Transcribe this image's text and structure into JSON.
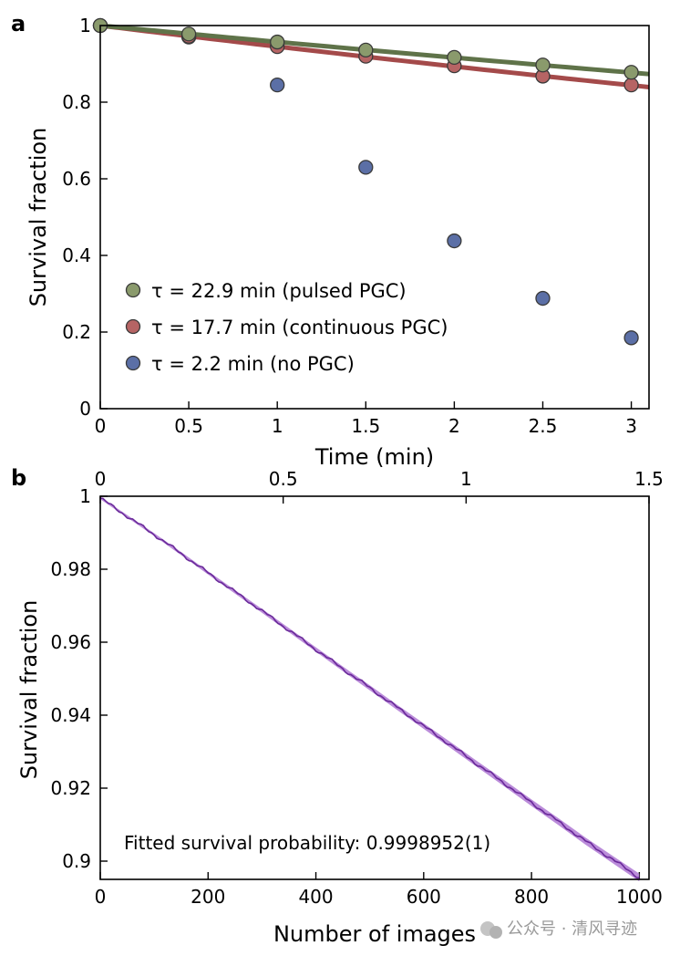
{
  "chart_data": [
    {
      "panel": "a",
      "type": "scatter",
      "xlabel": "Time (min)",
      "ylabel": "Survival fraction",
      "xlim": [
        0,
        3.1
      ],
      "ylim": [
        0,
        1
      ],
      "xticks": [
        0,
        0.5,
        1,
        1.5,
        2,
        2.5,
        3
      ],
      "xtick_labels": [
        "0",
        "0.5",
        "1",
        "1.5",
        "2",
        "2.5",
        "3"
      ],
      "yticks": [
        0,
        0.2,
        0.4,
        0.6,
        0.8,
        1
      ],
      "ytick_labels": [
        "0",
        "0.2",
        "0.4",
        "0.6",
        "0.8",
        "1"
      ],
      "x": [
        0,
        0.5,
        1,
        1.5,
        2,
        2.5,
        3
      ],
      "legend_position": "center-left",
      "series": [
        {
          "name": "τ = 22.9 min (pulsed PGC)",
          "color": "#8a9a6c",
          "fit_color": "#5f7349",
          "tau": 22.9,
          "values": [
            1.0,
            0.978,
            0.957,
            0.936,
            0.917,
            0.897,
            0.878
          ]
        },
        {
          "name": "τ = 17.7 min (continuous PGC)",
          "color": "#b66464",
          "fit_color": "#a44a4a",
          "tau": 17.7,
          "values": [
            1.0,
            0.972,
            0.945,
            0.92,
            0.895,
            0.868,
            0.845
          ]
        },
        {
          "name": "τ = 2.2 min (no PGC)",
          "color": "#5b6fa6",
          "fit_color": "",
          "tau": 2.2,
          "values": [
            1.0,
            0.97,
            0.845,
            0.63,
            0.438,
            0.288,
            0.185
          ]
        }
      ]
    },
    {
      "panel": "b",
      "type": "line",
      "xlabel": "Number of images",
      "ylabel": "Survival fraction",
      "xlim": [
        0,
        1000
      ],
      "ylim": [
        0.895,
        1
      ],
      "xticks": [
        0,
        200,
        400,
        600,
        800,
        1000
      ],
      "xtick_labels": [
        "0",
        "200",
        "400",
        "600",
        "800",
        "1000"
      ],
      "yticks": [
        0.9,
        0.92,
        0.94,
        0.96,
        0.98,
        1
      ],
      "ytick_labels": [
        "0.9",
        "0.92",
        "0.94",
        "0.96",
        "0.98",
        "1"
      ],
      "top_axis_min": [
        0,
        1.5
      ],
      "top_xticks": [
        0,
        0.5,
        1,
        1.5
      ],
      "top_xtick_labels": [
        "0",
        "0.5",
        "1",
        "1.5"
      ],
      "series": [
        {
          "name": "Survival fraction",
          "color": "#6a2a9a",
          "band_color": "#b47fd6",
          "x": [
            0,
            50,
            100,
            150,
            200,
            250,
            300,
            350,
            400,
            450,
            500,
            550,
            600,
            650,
            700,
            750,
            800,
            850,
            900,
            950,
            1000
          ],
          "values": [
            0.9995,
            0.9945,
            0.9895,
            0.9843,
            0.979,
            0.9738,
            0.9686,
            0.9633,
            0.958,
            0.9527,
            0.9475,
            0.9422,
            0.937,
            0.9318,
            0.9265,
            0.9213,
            0.916,
            0.9108,
            0.9055,
            0.9005,
            0.8955
          ]
        }
      ],
      "annotation": "Fitted survival probability: 0.9998952(1)"
    }
  ],
  "watermark": "公众号 · 清风寻迹"
}
